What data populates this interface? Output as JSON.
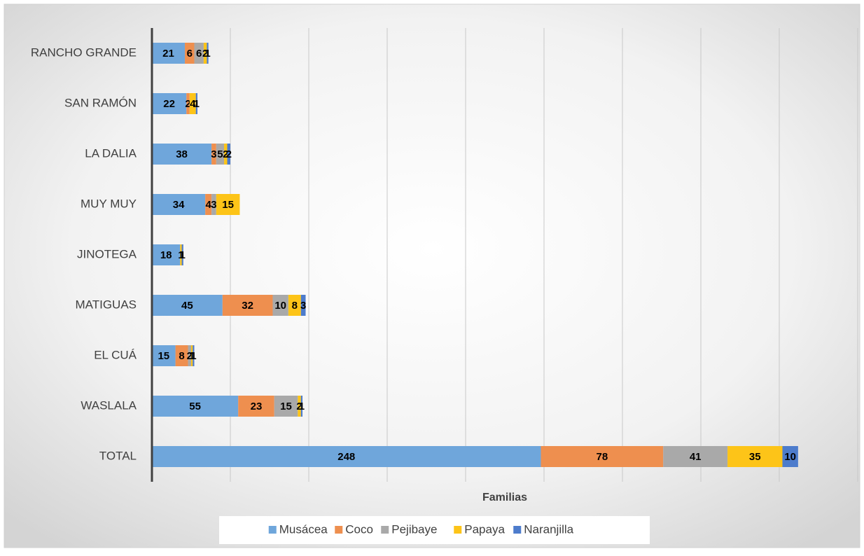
{
  "chart_data": {
    "type": "stacked-barh",
    "x_label": "Familias",
    "categories": [
      "RANCHO GRANDE",
      "SAN RAMÓN",
      "LA DALIA",
      "MUY MUY",
      "JINOTEGA",
      "MATIGUAS",
      "EL CUÁ",
      "WASLALA",
      "TOTAL"
    ],
    "series": [
      {
        "name": "Musácea",
        "color": "#6fa6db",
        "values": [
          21,
          22,
          38,
          34,
          18,
          45,
          15,
          55,
          248
        ]
      },
      {
        "name": "Coco",
        "color": "#ee8f4f",
        "values": [
          6,
          2,
          3,
          4,
          null,
          32,
          8,
          23,
          78
        ]
      },
      {
        "name": "Pejibaye",
        "color": "#a9a9a9",
        "values": [
          6,
          null,
          5,
          3,
          null,
          10,
          2,
          15,
          41
        ]
      },
      {
        "name": "Papaya",
        "color": "#fdc418",
        "values": [
          2,
          4,
          2,
          15,
          1,
          8,
          1,
          2,
          35
        ]
      },
      {
        "name": "Naranjilla",
        "color": "#4d7ccc",
        "values": [
          1,
          1,
          2,
          null,
          1,
          3,
          1,
          1,
          10
        ]
      }
    ],
    "xlim": [
      0,
      450
    ],
    "xticks": [
      0,
      50,
      100,
      150,
      200,
      250,
      300,
      350,
      400,
      450
    ],
    "grid": true,
    "legend": "bottom"
  }
}
